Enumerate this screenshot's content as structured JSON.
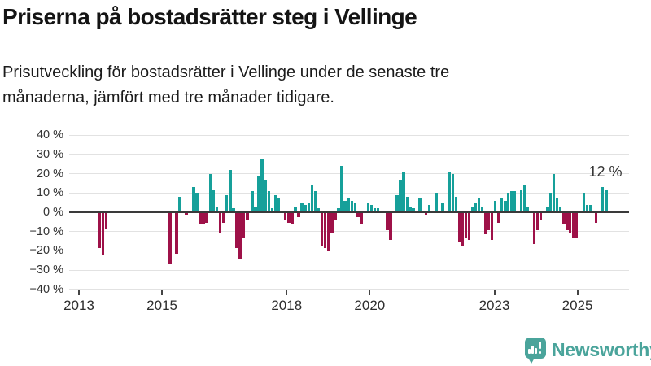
{
  "header": {
    "title": "Priserna på bostadsrätter steg i Vellinge",
    "subtitle": "Prisutveckling för bostadsrätter i Vellinge under de senaste tre månaderna, jämfört med tre månader tidigare.",
    "subtitle_lines": [
      "Prisutveckling för bostadsrätter i Vellinge under de senaste tre",
      "månaderna, jämfört med tre månader tidigare."
    ]
  },
  "chart_data": {
    "type": "bar",
    "title": "Priserna på bostadsrätter steg i Vellinge",
    "xlabel": "",
    "ylabel": "",
    "unit": "%",
    "ylim": [
      -40,
      40
    ],
    "grid": true,
    "yticks": [
      40,
      30,
      20,
      10,
      0,
      -10,
      -20,
      -30,
      -40
    ],
    "ytick_labels": [
      "40 %",
      "30 %",
      "20 %",
      "10 %",
      "0 %",
      "−10 %",
      "−20 %",
      "−30 %",
      "−40 %"
    ],
    "xticks": [
      2013,
      2015,
      2018,
      2020,
      2023,
      2025
    ],
    "xtick_labels": [
      "2013",
      "2015",
      "2018",
      "2020",
      "2023",
      "2025"
    ],
    "annotation": {
      "text": "12 %",
      "x": 2025.69,
      "value": 12
    },
    "colors": {
      "positive": "#16a09a",
      "negative": "#9e1148",
      "axis": "#3a3a3a",
      "grid": "#e2e2e2",
      "text": "#333333"
    },
    "series_note": "bars = [year_fraction, percent_change]",
    "bars": [
      [
        2013.5,
        -18
      ],
      [
        2013.58,
        -22
      ],
      [
        2013.66,
        -8
      ],
      [
        2015.19,
        -26
      ],
      [
        2015.35,
        -21
      ],
      [
        2015.43,
        8
      ],
      [
        2015.51,
        1
      ],
      [
        2015.59,
        -1
      ],
      [
        2015.76,
        13
      ],
      [
        2015.84,
        10
      ],
      [
        2015.92,
        -6
      ],
      [
        2016.0,
        -6
      ],
      [
        2016.08,
        -5
      ],
      [
        2016.16,
        20
      ],
      [
        2016.24,
        12
      ],
      [
        2016.32,
        3
      ],
      [
        2016.4,
        -10
      ],
      [
        2016.48,
        -5
      ],
      [
        2016.56,
        9
      ],
      [
        2016.64,
        22
      ],
      [
        2016.72,
        2
      ],
      [
        2016.8,
        -18
      ],
      [
        2016.88,
        -24
      ],
      [
        2016.96,
        -13
      ],
      [
        2017.05,
        -4
      ],
      [
        2017.17,
        11
      ],
      [
        2017.25,
        3
      ],
      [
        2017.33,
        19
      ],
      [
        2017.41,
        28
      ],
      [
        2017.49,
        17
      ],
      [
        2017.57,
        11
      ],
      [
        2017.65,
        2
      ],
      [
        2017.73,
        9
      ],
      [
        2017.81,
        7
      ],
      [
        2017.89,
        1
      ],
      [
        2017.97,
        -4
      ],
      [
        2018.05,
        -5
      ],
      [
        2018.13,
        -6
      ],
      [
        2018.21,
        3
      ],
      [
        2018.29,
        -2
      ],
      [
        2018.37,
        5
      ],
      [
        2018.45,
        4
      ],
      [
        2018.53,
        5
      ],
      [
        2018.61,
        14
      ],
      [
        2018.69,
        11
      ],
      [
        2018.77,
        2
      ],
      [
        2018.85,
        -17
      ],
      [
        2018.93,
        -18
      ],
      [
        2019.01,
        -20
      ],
      [
        2019.09,
        -10
      ],
      [
        2019.17,
        -4
      ],
      [
        2019.25,
        2
      ],
      [
        2019.33,
        24
      ],
      [
        2019.41,
        6
      ],
      [
        2019.49,
        7
      ],
      [
        2019.57,
        6
      ],
      [
        2019.65,
        5
      ],
      [
        2019.72,
        -2
      ],
      [
        2019.8,
        -6
      ],
      [
        2019.96,
        5
      ],
      [
        2020.04,
        4
      ],
      [
        2020.12,
        2
      ],
      [
        2020.2,
        2
      ],
      [
        2020.28,
        1
      ],
      [
        2020.42,
        -9
      ],
      [
        2020.5,
        -14
      ],
      [
        2020.66,
        9
      ],
      [
        2020.74,
        17
      ],
      [
        2020.82,
        21
      ],
      [
        2020.9,
        8
      ],
      [
        2020.97,
        3
      ],
      [
        2021.05,
        2
      ],
      [
        2021.21,
        7
      ],
      [
        2021.35,
        -1
      ],
      [
        2021.43,
        4
      ],
      [
        2021.6,
        10
      ],
      [
        2021.76,
        5
      ],
      [
        2021.92,
        21
      ],
      [
        2022.0,
        20
      ],
      [
        2022.08,
        8
      ],
      [
        2022.16,
        -15
      ],
      [
        2022.24,
        -17
      ],
      [
        2022.31,
        -13
      ],
      [
        2022.39,
        -14
      ],
      [
        2022.47,
        3
      ],
      [
        2022.55,
        5
      ],
      [
        2022.63,
        7
      ],
      [
        2022.71,
        3
      ],
      [
        2022.79,
        -11
      ],
      [
        2022.86,
        -9
      ],
      [
        2022.94,
        -14
      ],
      [
        2023.02,
        6
      ],
      [
        2023.1,
        -5
      ],
      [
        2023.18,
        7
      ],
      [
        2023.26,
        6
      ],
      [
        2023.33,
        10
      ],
      [
        2023.41,
        11
      ],
      [
        2023.49,
        11
      ],
      [
        2023.57,
        1
      ],
      [
        2023.65,
        12
      ],
      [
        2023.73,
        14
      ],
      [
        2023.8,
        3
      ],
      [
        2023.96,
        -16
      ],
      [
        2024.04,
        -9
      ],
      [
        2024.12,
        -4
      ],
      [
        2024.28,
        3
      ],
      [
        2024.35,
        10
      ],
      [
        2024.43,
        20
      ],
      [
        2024.51,
        7
      ],
      [
        2024.59,
        3
      ],
      [
        2024.67,
        -6
      ],
      [
        2024.75,
        -9
      ],
      [
        2024.82,
        -10
      ],
      [
        2024.9,
        -13
      ],
      [
        2024.98,
        -13
      ],
      [
        2025.08,
        1
      ],
      [
        2025.15,
        10
      ],
      [
        2025.23,
        4
      ],
      [
        2025.31,
        4
      ],
      [
        2025.45,
        -5
      ],
      [
        2025.61,
        13
      ],
      [
        2025.69,
        12
      ]
    ]
  },
  "footer": {
    "brand": "Newsworthy",
    "brand_color": "#4aa49b"
  }
}
